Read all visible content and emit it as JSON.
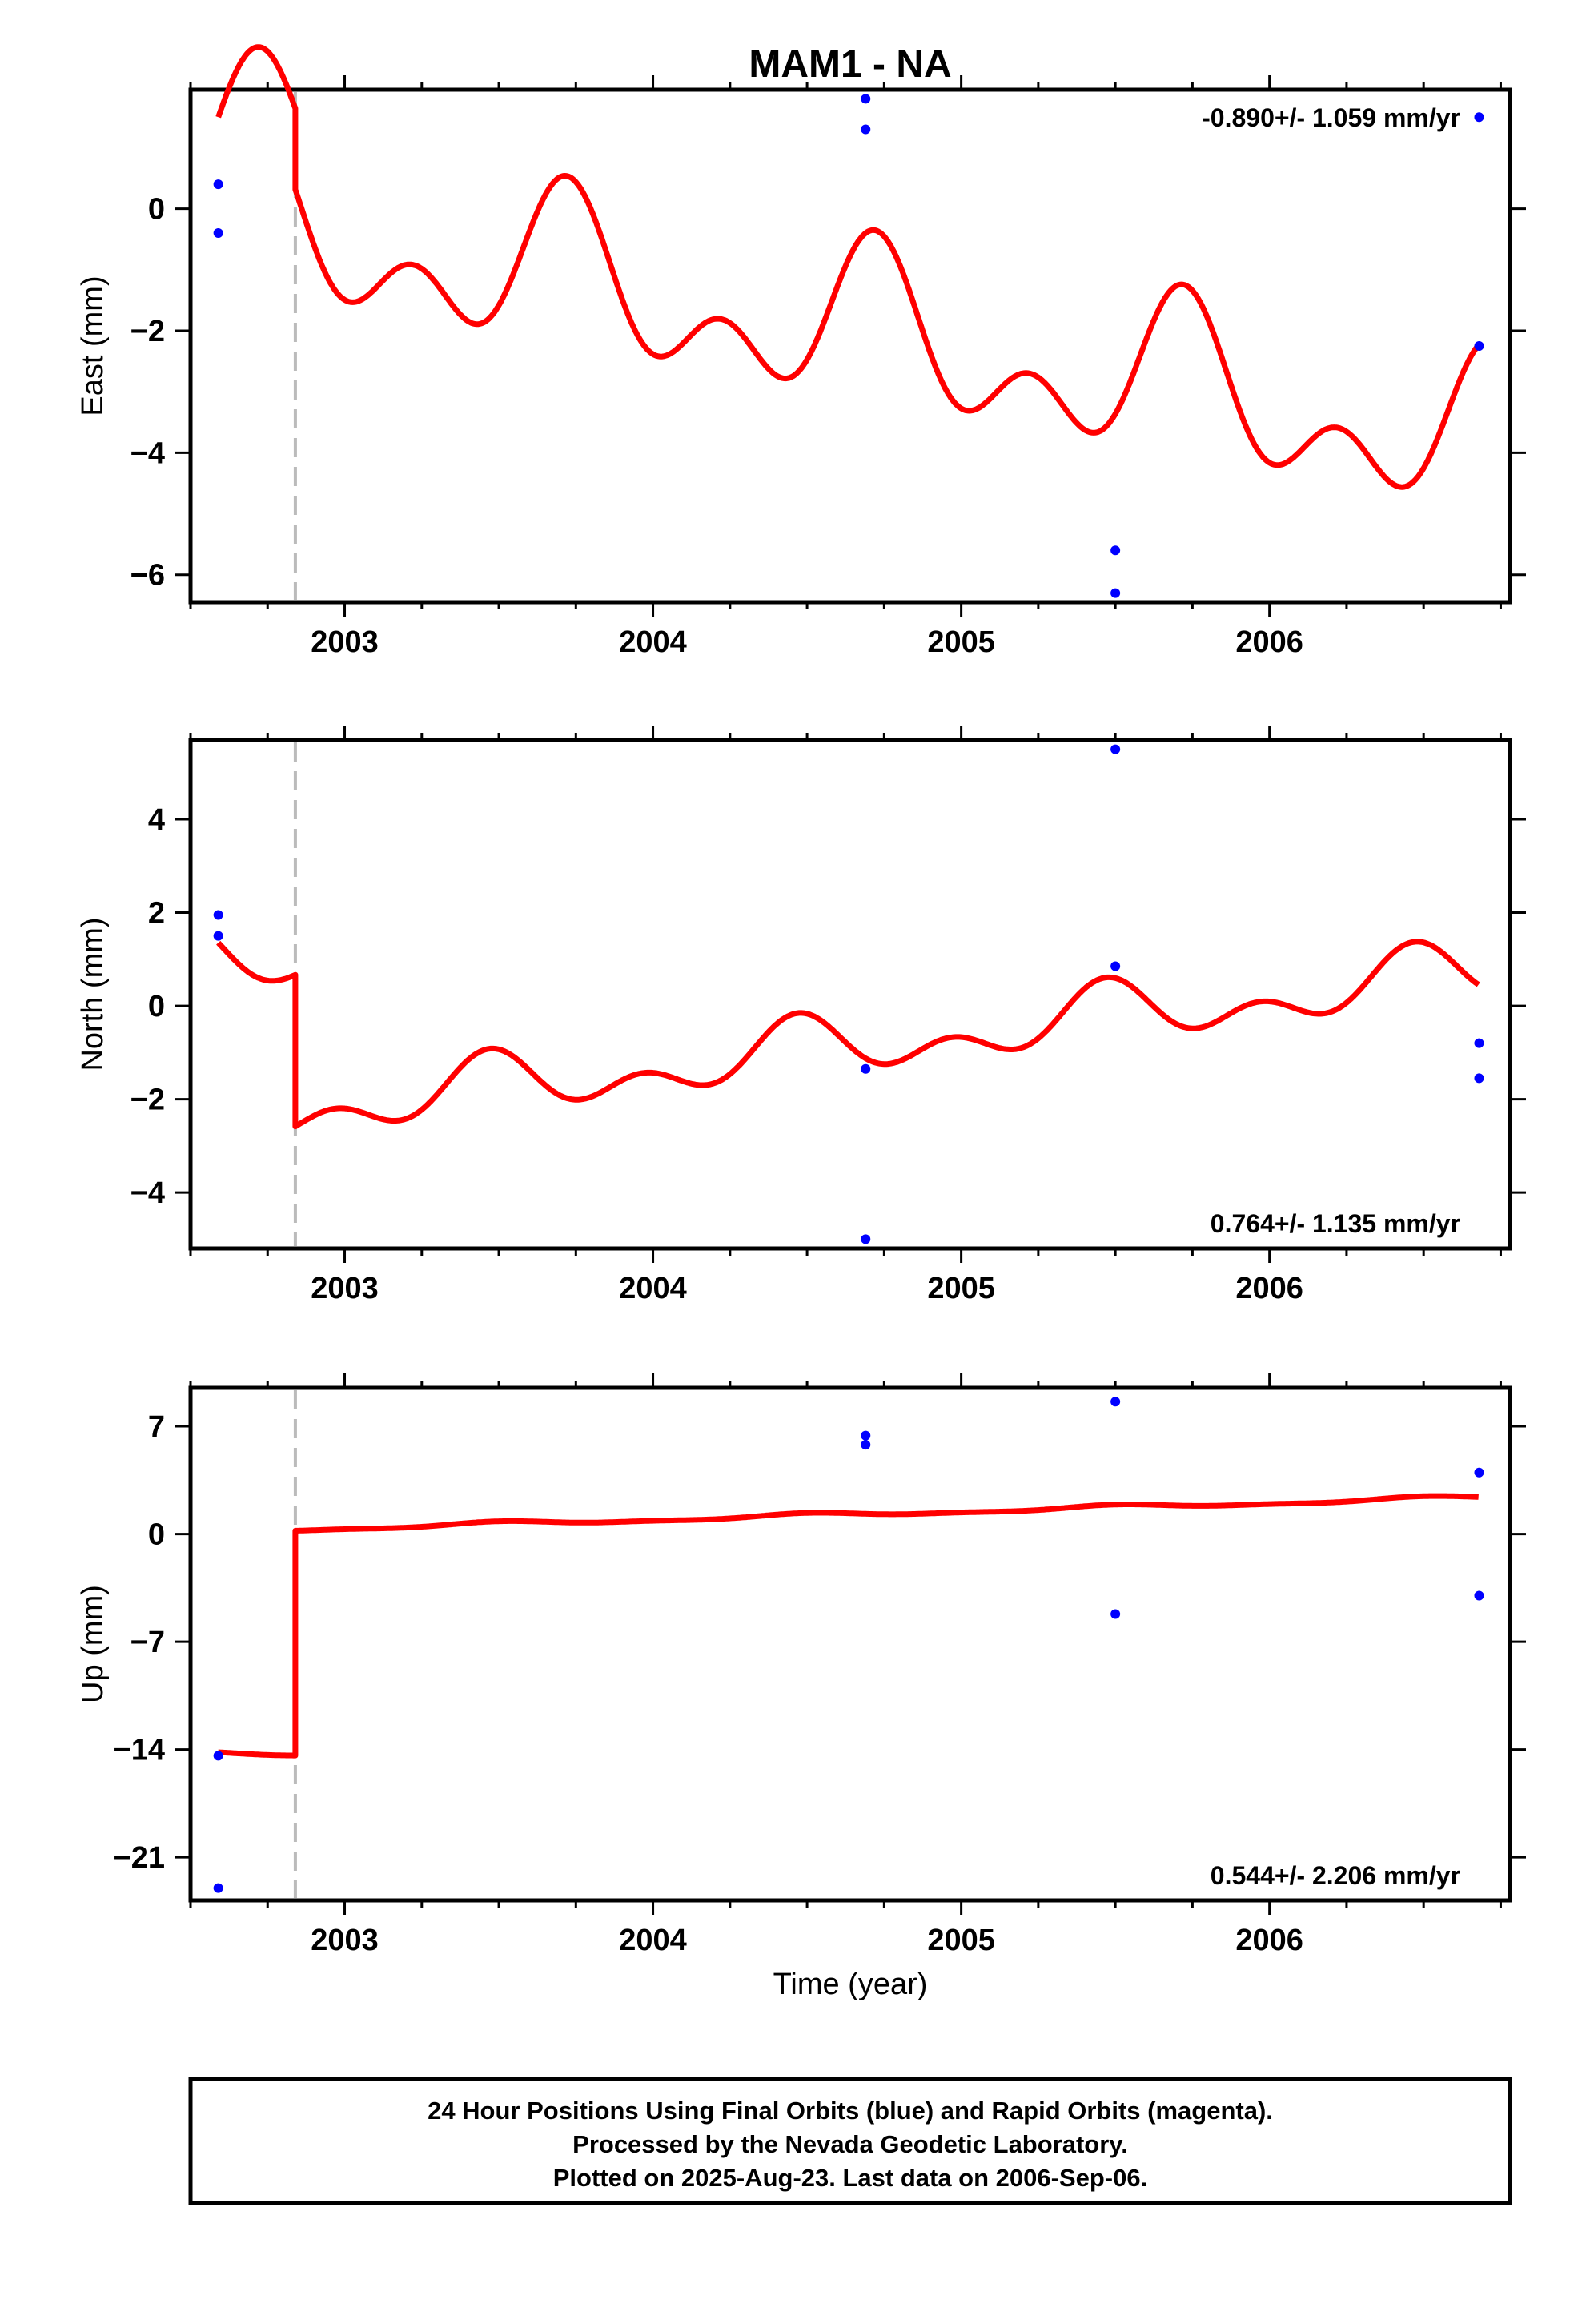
{
  "chart_data": {
    "title": "MAM1 - NA",
    "xlabel": "Time (year)",
    "xlim": [
      2002.5,
      2006.78
    ],
    "xticks": [
      2003,
      2004,
      2005,
      2006
    ],
    "offset_epoch": 2002.84,
    "trend_color": "#ff0000",
    "final_orbit_color": "#0000ff",
    "offset_line_color": "#bbbbbb",
    "panels": [
      {
        "name": "east",
        "type": "scatter",
        "ylabel": "East (mm)",
        "ylim": [
          -6.45,
          1.95
        ],
        "yticks": [
          0,
          -2,
          -4,
          -6
        ],
        "rate_text": "-0.890+/- 1.059 mm/yr",
        "rate_position": "top-right",
        "points": [
          [
            2002.59,
            0.4
          ],
          [
            2002.59,
            -0.4
          ],
          [
            2004.69,
            1.8
          ],
          [
            2004.69,
            1.3
          ],
          [
            2005.5,
            -5.6
          ],
          [
            2005.5,
            -6.3
          ],
          [
            2006.68,
            1.5
          ],
          [
            2006.68,
            -2.25
          ]
        ],
        "model": {
          "t0": 2002.59,
          "t_end": 2006.68,
          "pre_offset_mean": 0.9,
          "post_offset_intercept": -0.43,
          "trend_mm_per_yr": -0.89,
          "annual": {
            "amplitude": 0.95,
            "peak_time": 2003.72
          },
          "semiannual": {
            "amplitude": 0.8,
            "peak_time": 2003.72
          }
        }
      },
      {
        "name": "north",
        "type": "scatter",
        "ylabel": "North (mm)",
        "ylim": [
          -5.2,
          5.7
        ],
        "yticks": [
          4,
          2,
          0,
          -2,
          -4
        ],
        "rate_text": "0.764+/- 1.135 mm/yr",
        "rate_position": "bottom-right",
        "points": [
          [
            2002.59,
            1.95
          ],
          [
            2002.59,
            1.5
          ],
          [
            2004.69,
            -1.35
          ],
          [
            2004.69,
            -5.0
          ],
          [
            2005.5,
            5.5
          ],
          [
            2005.5,
            0.85
          ],
          [
            2006.68,
            -0.8
          ],
          [
            2006.68,
            -1.55
          ]
        ],
        "model": {
          "t0": 2002.59,
          "t_end": 2006.68,
          "pre_offset_mean": 1.0,
          "post_offset_intercept": -2.25,
          "trend_mm_per_yr": 0.764,
          "annual": {
            "amplitude": 0.45,
            "peak_time": 2003.47
          },
          "semiannual": {
            "amplitude": 0.4,
            "peak_time": 2003.47
          }
        }
      },
      {
        "name": "up",
        "type": "scatter",
        "ylabel": "Up (mm)",
        "ylim": [
          -23.8,
          9.5
        ],
        "yticks": [
          7,
          0,
          -7,
          -14,
          -21
        ],
        "rate_text": "0.544+/- 2.206 mm/yr",
        "rate_position": "bottom-right",
        "points": [
          [
            2002.59,
            -14.4
          ],
          [
            2002.59,
            -23.0
          ],
          [
            2004.69,
            6.4
          ],
          [
            2004.69,
            5.8
          ],
          [
            2005.5,
            8.6
          ],
          [
            2005.5,
            -5.2
          ],
          [
            2006.68,
            4.0
          ],
          [
            2006.68,
            -4.0
          ]
        ],
        "model": {
          "t0": 2002.59,
          "t_end": 2006.68,
          "pre_offset_mean": -14.3,
          "post_offset_intercept": 0.3,
          "trend_mm_per_yr": 0.544,
          "annual": {
            "amplitude": 0.12,
            "peak_time": 2003.5
          },
          "semiannual": {
            "amplitude": 0.05,
            "peak_time": 2003.5
          }
        }
      }
    ]
  },
  "footer": {
    "line1": "24 Hour Positions Using Final Orbits (blue) and Rapid Orbits (magenta).",
    "line2": "Processed by the Nevada Geodetic Laboratory.",
    "line3": "Plotted on 2025-Aug-23. Last data on 2006-Sep-06."
  }
}
